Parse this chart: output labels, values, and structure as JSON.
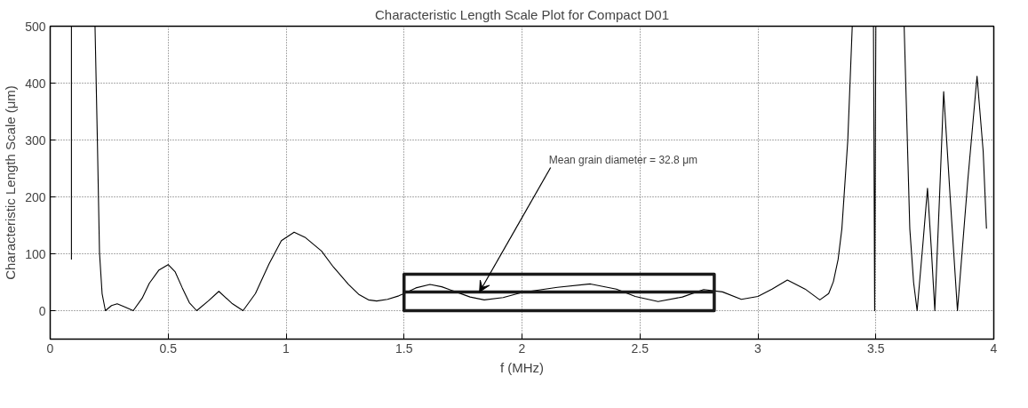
{
  "chart_data": {
    "type": "line",
    "title": "Characteristic Length Scale Plot for Compact D01",
    "xlabel": "f (MHz)",
    "ylabel": "Characteristic Length Scale (μm)",
    "xlim": [
      0,
      4
    ],
    "ylim": [
      -50,
      500
    ],
    "xticks": [
      0,
      0.5,
      1,
      1.5,
      2,
      2.5,
      3,
      3.5,
      4
    ],
    "yticks": [
      0,
      100,
      200,
      300,
      400,
      500
    ],
    "grid": true,
    "line_style": "solid",
    "marker": "none",
    "annotations": [
      {
        "text": "Mean grain diameter = 32.8 μm",
        "x": 1.82,
        "y": 32.8
      }
    ],
    "series": [
      {
        "color": "#000000",
        "x": [
          0.09,
          0.09,
          null,
          0.19,
          0.2,
          0.209,
          0.22,
          0.234,
          0.26,
          0.284,
          0.32,
          0.352,
          0.39,
          0.42,
          0.46,
          0.5,
          0.53,
          0.56,
          0.59,
          0.621,
          0.67,
          0.715,
          0.77,
          0.8175,
          0.87,
          0.9275,
          0.98,
          1.034,
          1.08,
          1.15,
          1.2,
          1.265,
          1.31,
          1.349,
          1.384,
          1.43,
          1.4775,
          1.5,
          1.55,
          1.61,
          1.66,
          1.72,
          1.78,
          1.84,
          1.92,
          2.0,
          2.15,
          2.29,
          2.4,
          2.48,
          2.577,
          2.68,
          2.77,
          2.85,
          2.93,
          3.0,
          3.06,
          3.125,
          3.2,
          3.2625,
          3.3,
          3.32,
          3.34,
          3.356,
          3.381,
          3.4,
          3.49,
          3.495,
          3.5,
          null,
          3.62,
          3.644,
          3.66,
          3.675,
          3.7,
          3.719,
          3.735,
          3.75,
          3.77,
          3.7875,
          3.815,
          3.846,
          3.89,
          3.929,
          3.955,
          3.969
        ],
        "values": [
          90,
          500,
          null,
          500,
          299,
          102,
          30,
          0,
          9,
          12,
          6,
          0,
          22,
          48,
          71,
          81,
          68,
          40,
          14,
          0,
          17,
          34,
          13,
          0,
          30,
          82,
          123,
          138,
          129,
          105,
          77,
          46,
          28,
          19,
          17,
          20,
          26,
          30,
          40,
          46,
          42,
          33,
          24,
          19,
          23,
          32,
          41,
          47,
          38,
          25,
          16,
          24,
          37,
          33,
          20,
          25,
          38,
          54,
          38,
          19,
          30,
          51,
          90,
          144,
          299,
          500,
          500,
          0,
          500,
          null,
          500,
          144,
          50,
          0,
          120,
          215,
          110,
          0,
          200,
          385,
          200,
          0,
          230,
          412,
          280,
          144
        ]
      },
      {
        "color": "#1a1a1a",
        "x": [
          1.5,
          2.815,
          2.815,
          1.5,
          1.5,
          1.5,
          2.815
        ],
        "values": [
          0,
          0,
          64,
          64,
          0,
          33,
          33
        ]
      }
    ]
  }
}
